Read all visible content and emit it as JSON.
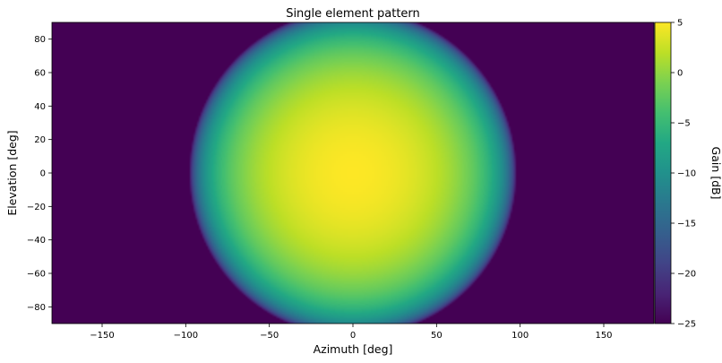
{
  "chart_data": {
    "type": "heatmap",
    "title": "Single element pattern",
    "xlabel": "Azimuth [deg]",
    "ylabel": "Elevation [deg]",
    "xlim": [
      -180,
      180
    ],
    "ylim": [
      -90,
      90
    ],
    "xticks": [
      -150,
      -100,
      -50,
      0,
      50,
      100,
      150
    ],
    "yticks": [
      -80,
      -60,
      -40,
      -20,
      0,
      20,
      40,
      60,
      80
    ],
    "colorbar": {
      "label": "Gain [dB]",
      "range": [
        -25,
        5
      ],
      "ticks": [
        -25,
        -20,
        -15,
        -10,
        -5,
        0,
        5
      ],
      "colormap": "viridis",
      "placement": "right"
    },
    "pattern": {
      "peak_gain_db": 5,
      "peak_azimuth_deg": 0,
      "peak_elevation_deg": 0,
      "edge_angle_deg": 100,
      "floor_gain_db": -25
    }
  }
}
